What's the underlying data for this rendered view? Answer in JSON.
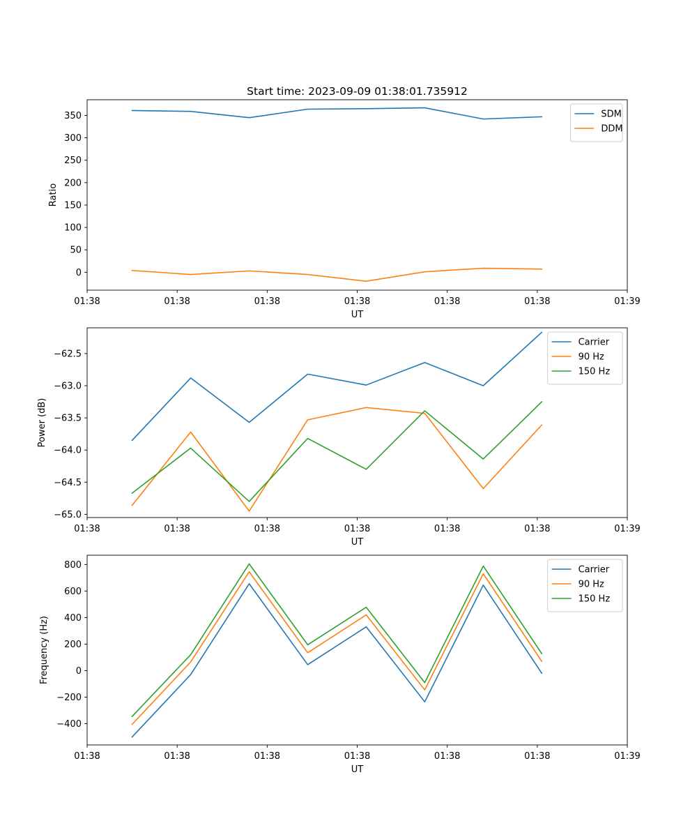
{
  "title": "Start time: 2023-09-09 01:38:01.735912",
  "chart_data": [
    {
      "type": "line",
      "title": "Start time: 2023-09-09 01:38:01.735912",
      "xlabel": "UT",
      "ylabel": "Ratio",
      "x_tick_labels": [
        "01:38",
        "01:38",
        "01:38",
        "01:38",
        "01:38",
        "01:38",
        "01:38"
      ],
      "x_last_tick_label": "01:39",
      "xlim": [
        0,
        12
      ],
      "x": [
        1,
        2.3,
        3.6,
        4.9,
        6.2,
        7.5,
        8.8,
        10.1
      ],
      "ylim": [
        -40,
        385
      ],
      "yticks": [
        0,
        50,
        100,
        150,
        200,
        250,
        300,
        350
      ],
      "legend_position": "upper right",
      "series": [
        {
          "name": "SDM",
          "color": "#1f77b4",
          "values": [
            361,
            359,
            345,
            364,
            365,
            367,
            342,
            347
          ]
        },
        {
          "name": "DDM",
          "color": "#ff7f0e",
          "values": [
            4,
            -5,
            3,
            -5,
            -20,
            1,
            9,
            7
          ]
        }
      ]
    },
    {
      "type": "line",
      "xlabel": "UT",
      "ylabel": "Power (dB)",
      "x_tick_labels": [
        "01:38",
        "01:38",
        "01:38",
        "01:38",
        "01:38",
        "01:38",
        "01:38"
      ],
      "x_last_tick_label": "01:39",
      "xlim": [
        0,
        12
      ],
      "x": [
        1,
        2.3,
        3.6,
        4.9,
        6.2,
        7.5,
        8.8,
        10.1
      ],
      "ylim": [
        -65.05,
        -62.1
      ],
      "yticks": [
        -65.0,
        -64.5,
        -64.0,
        -63.5,
        -63.0,
        -62.5
      ],
      "ytick_labels": [
        "−65.0",
        "−64.5",
        "−64.0",
        "−63.5",
        "−63.0",
        "−62.5"
      ],
      "legend_position": "upper right",
      "series": [
        {
          "name": "Carrier",
          "color": "#1f77b4",
          "values": [
            -63.85,
            -62.88,
            -63.57,
            -62.82,
            -62.99,
            -62.64,
            -63.0,
            -62.17
          ]
        },
        {
          "name": "90 Hz",
          "color": "#ff7f0e",
          "values": [
            -64.86,
            -63.72,
            -64.95,
            -63.53,
            -63.34,
            -63.43,
            -64.6,
            -63.61
          ]
        },
        {
          "name": "150 Hz",
          "color": "#2ca02c",
          "values": [
            -64.67,
            -63.97,
            -64.8,
            -63.82,
            -64.3,
            -63.39,
            -64.14,
            -63.25
          ]
        }
      ]
    },
    {
      "type": "line",
      "xlabel": "UT",
      "ylabel": "Frequency (Hz)",
      "x_tick_labels": [
        "01:38",
        "01:38",
        "01:38",
        "01:38",
        "01:38",
        "01:38",
        "01:38"
      ],
      "x_last_tick_label": "01:39",
      "xlim": [
        0,
        12
      ],
      "x": [
        1,
        2.3,
        3.6,
        4.9,
        6.2,
        7.5,
        8.8,
        10.1
      ],
      "ylim": [
        -560,
        870
      ],
      "yticks": [
        -400,
        -200,
        0,
        200,
        400,
        600,
        800
      ],
      "ytick_labels": [
        "−400",
        "−200",
        "0",
        "200",
        "400",
        "600",
        "800"
      ],
      "legend_position": "upper right",
      "series": [
        {
          "name": "Carrier",
          "color": "#1f77b4",
          "values": [
            -500,
            -30,
            655,
            45,
            330,
            -235,
            645,
            -20
          ]
        },
        {
          "name": "90 Hz",
          "color": "#ff7f0e",
          "values": [
            -405,
            65,
            745,
            135,
            420,
            -145,
            730,
            70
          ]
        },
        {
          "name": "150 Hz",
          "color": "#2ca02c",
          "values": [
            -345,
            120,
            805,
            195,
            478,
            -90,
            788,
            128
          ]
        }
      ]
    }
  ]
}
